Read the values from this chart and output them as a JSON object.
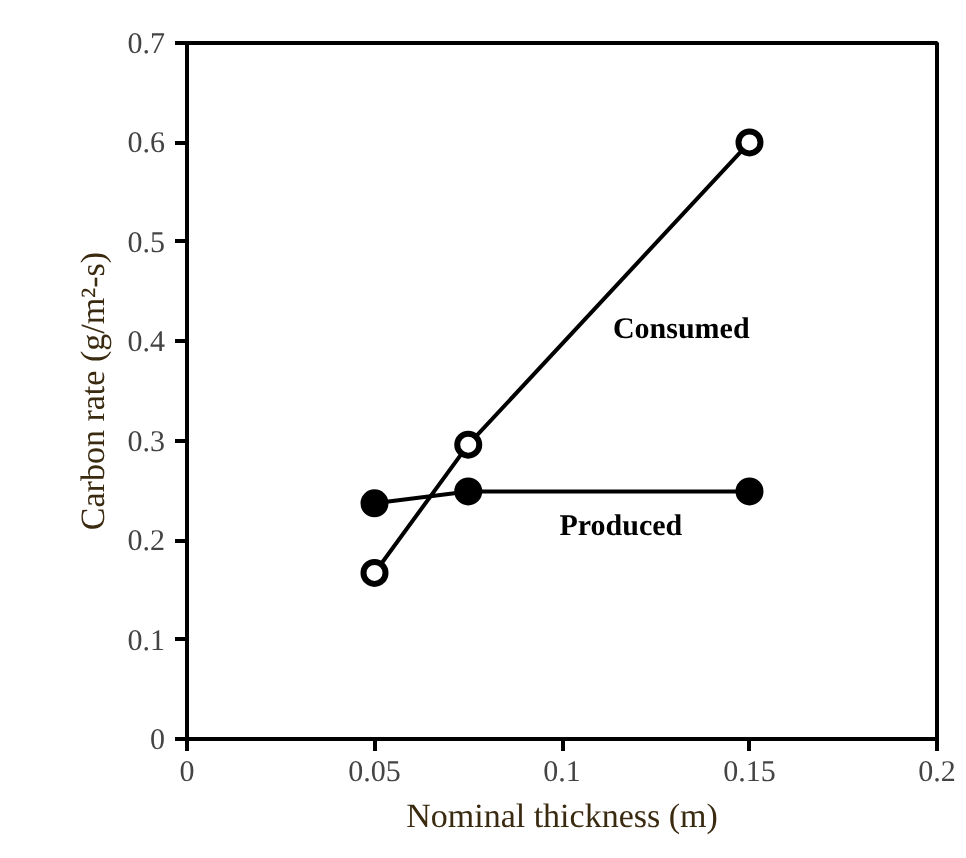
{
  "chart_data": {
    "type": "line",
    "xlabel": "Nominal thickness (m)",
    "ylabel": "Carbon rate (g/m²-s)",
    "x": [
      0.05,
      0.075,
      0.15
    ],
    "series": [
      {
        "name": "Consumed",
        "color": "#000000",
        "values": [
          0.167,
          0.296,
          0.6
        ]
      },
      {
        "name": "Produced",
        "color": "#000000",
        "values": [
          0.237,
          0.249,
          0.249
        ]
      }
    ],
    "xlim": [
      0,
      0.2
    ],
    "xticks": [
      0,
      0.05,
      0.1,
      0.15,
      0.2
    ],
    "ylim": [
      0,
      0.7
    ],
    "yticks": [
      0,
      0.1,
      0.2,
      0.3,
      0.4,
      0.5,
      0.6,
      0.7
    ],
    "grid": false,
    "marker": "circle",
    "line_style": "solid"
  }
}
